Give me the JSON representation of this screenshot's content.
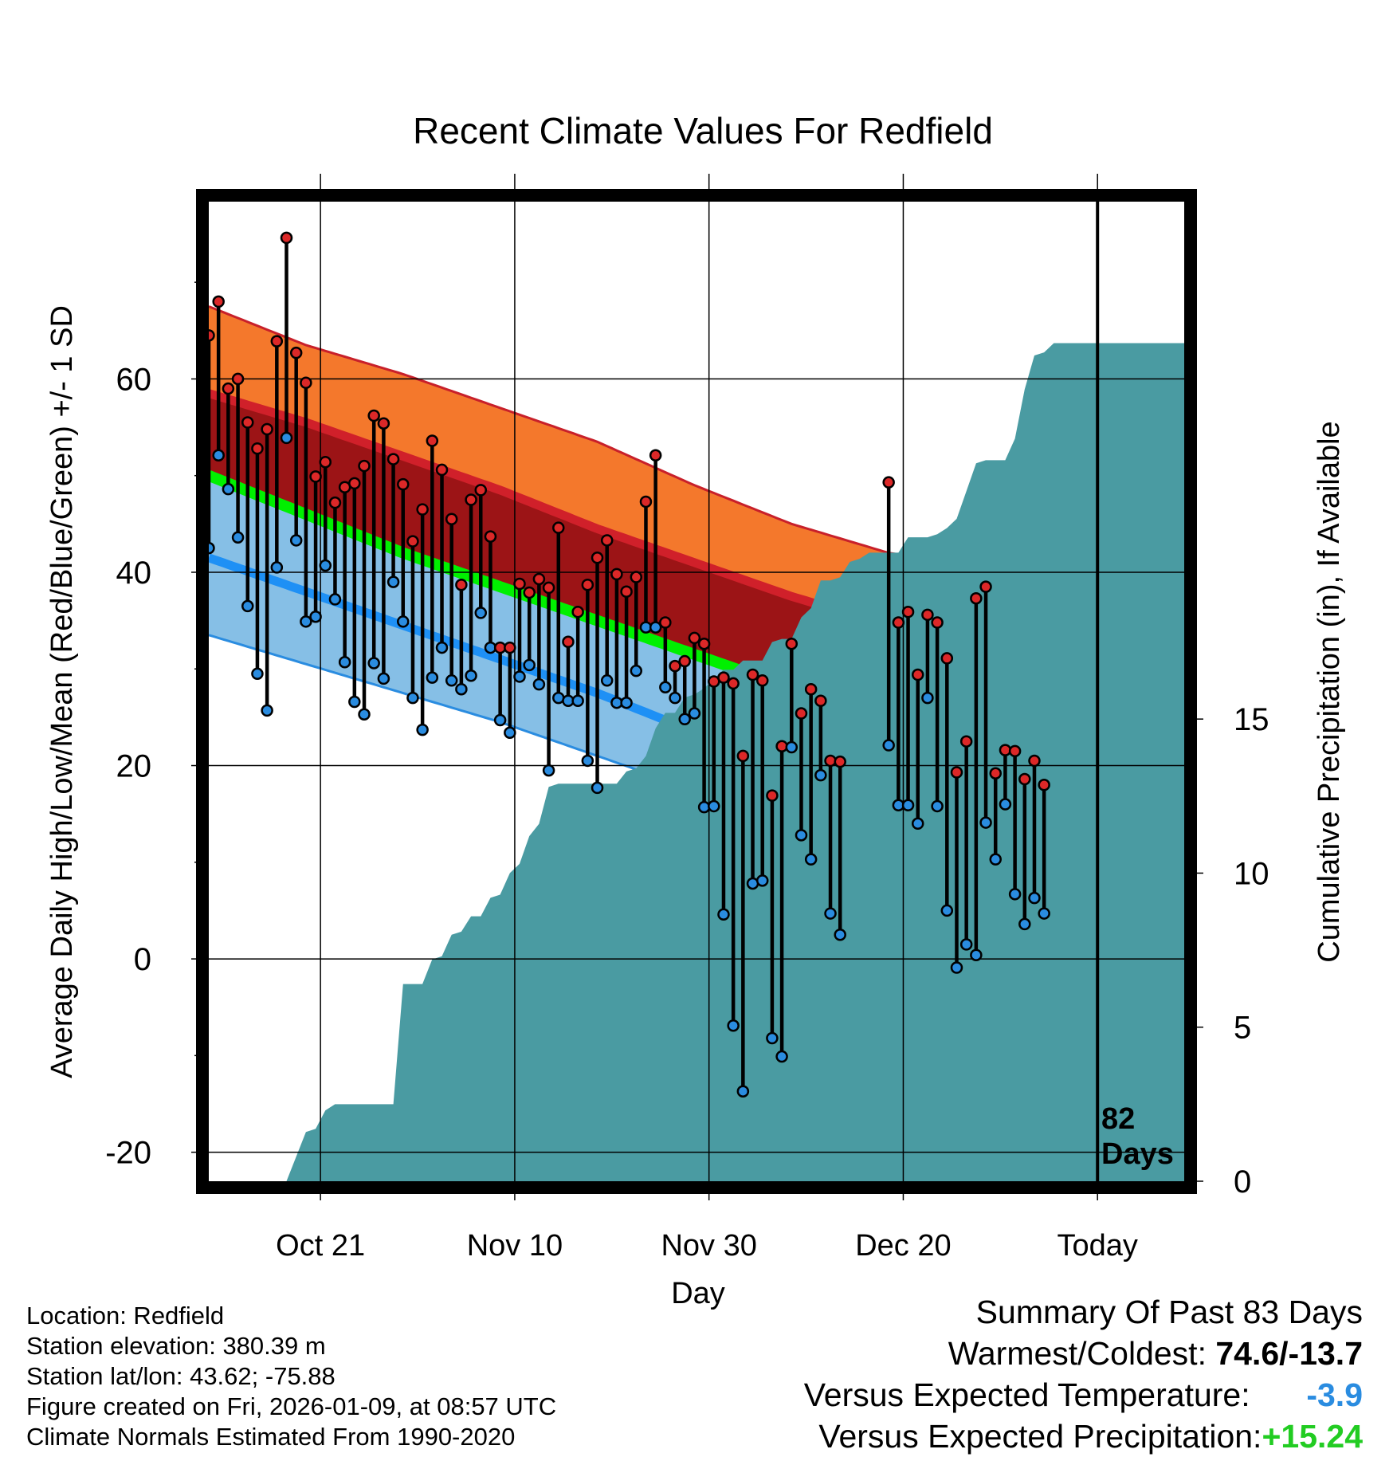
{
  "chart_data": {
    "type": "line",
    "title": "Recent Climate Values For Redfield",
    "xlabel": "Day",
    "ylabel": "Average Daily High/Low/Mean (Red/Blue/Green) +/- 1 SD",
    "y2label": "Cumulative Precipitation (in), If Available",
    "x_day_range": [
      0,
      101
    ],
    "ylim": [
      -23,
      79
    ],
    "y2lim": [
      0,
      32
    ],
    "x_ticks": [
      {
        "day": 11.5,
        "label": "Oct 21"
      },
      {
        "day": 31.5,
        "label": "Nov 10"
      },
      {
        "day": 51.5,
        "label": "Nov 30"
      },
      {
        "day": 71.5,
        "label": "Dec 20"
      },
      {
        "day": 91.5,
        "label": "Today"
      }
    ],
    "y_ticks": [
      -20,
      0,
      20,
      40,
      60
    ],
    "y2_ticks": [
      0,
      5,
      10,
      15
    ],
    "today_day": 91.5,
    "today_label_line1": "82",
    "today_label_line2": "Days",
    "normals": {
      "days": [
        0,
        10,
        20,
        30,
        40,
        50,
        60,
        70,
        80,
        90,
        101
      ],
      "high_mean": [
        58.5,
        55.5,
        52,
        48.5,
        44.5,
        41,
        37.5,
        34.5,
        32,
        30.5,
        29.5
      ],
      "high_plus_sd": [
        67.5,
        63.5,
        60.5,
        57,
        53.5,
        49,
        45,
        42,
        40.5,
        40,
        39.5
      ],
      "avg_mean": [
        50,
        46,
        42,
        38.5,
        35,
        31.5,
        28,
        25,
        22.5,
        20.5,
        19.5
      ],
      "low_mean": [
        41.5,
        38,
        34.5,
        31,
        27.5,
        23.5,
        20.5,
        17.5,
        15,
        13,
        12
      ],
      "low_minus_sd": [
        33.5,
        30.5,
        27.5,
        24.5,
        21,
        17.5,
        14,
        11.5,
        9,
        7.5,
        6.5
      ]
    },
    "observed_day_start": 0,
    "observed_highs": [
      64.5,
      68,
      59,
      60,
      55.5,
      52.8,
      54.8,
      63.9,
      74.6,
      62.7,
      59.6,
      49.9,
      51.4,
      47.2,
      48.8,
      49.2,
      51,
      56.2,
      55.4,
      51.7,
      49.1,
      43.2,
      46.5,
      53.6,
      50.6,
      45.5,
      38.7,
      47.5,
      48.5,
      43.7,
      32.2,
      32.2,
      38.8,
      37.9,
      39.3,
      38.4,
      44.6,
      32.8,
      35.9,
      38.7,
      41.5,
      43.3,
      39.8,
      38,
      39.5,
      47.3,
      52.1,
      34.8,
      30.3,
      30.8,
      33.2,
      32.6,
      28.7,
      29.1,
      28.5,
      21,
      29.4,
      28.8,
      16.9,
      22,
      32.6,
      25.4,
      27.9,
      26.7,
      20.5,
      20.4,
      null,
      null,
      null,
      null,
      49.3,
      34.8,
      35.9,
      29.4,
      35.6,
      34.8,
      31.1,
      19.3,
      22.5,
      37.3,
      38.5,
      19.2,
      21.6,
      21.5,
      18.6,
      20.5,
      18
    ],
    "observed_lows": [
      42.5,
      52.1,
      48.6,
      43.6,
      36.5,
      29.5,
      25.7,
      40.5,
      53.9,
      43.3,
      34.9,
      35.4,
      40.7,
      37.2,
      30.7,
      26.6,
      25.3,
      30.6,
      29,
      39,
      34.9,
      27,
      23.7,
      29.1,
      32.2,
      28.8,
      27.9,
      29.3,
      35.8,
      32.2,
      24.7,
      23.4,
      29.2,
      30.4,
      28.4,
      19.5,
      27,
      26.7,
      26.7,
      20.5,
      17.7,
      28.8,
      26.5,
      26.5,
      29.8,
      34.3,
      34.3,
      28.1,
      27,
      24.8,
      25.4,
      15.7,
      15.8,
      4.6,
      -6.9,
      -13.7,
      7.8,
      8.1,
      -8.2,
      -10.1,
      21.9,
      12.8,
      10.3,
      19,
      4.7,
      2.5,
      null,
      null,
      null,
      null,
      22.1,
      15.9,
      15.9,
      14,
      27,
      15.8,
      5,
      -0.9,
      1.5,
      0.4,
      14.1,
      10.3,
      16,
      6.7,
      3.6,
      6.3,
      4.7
    ],
    "precip_cumulative": {
      "days": [
        8,
        10,
        11,
        12,
        13,
        14,
        15,
        16,
        17,
        18,
        19,
        20,
        21,
        22,
        23,
        24,
        25,
        26,
        27,
        28,
        29,
        30,
        31,
        32,
        33,
        34,
        35,
        36,
        37,
        38,
        39,
        40,
        41,
        42,
        43,
        44,
        45,
        46,
        47,
        48,
        49,
        50,
        51,
        52,
        53,
        54,
        55,
        56,
        57,
        58,
        59,
        60,
        61,
        62,
        63,
        64,
        65,
        66,
        67,
        68,
        69,
        70,
        71,
        72,
        73,
        74,
        75,
        76,
        77,
        78,
        79,
        80,
        81,
        82,
        83,
        84,
        85,
        86,
        87,
        88,
        101
      ],
      "values": [
        0,
        1.6,
        1.7,
        2.3,
        2.5,
        2.5,
        2.5,
        2.5,
        2.5,
        2.5,
        2.5,
        6.4,
        6.4,
        6.4,
        7.2,
        7.3,
        8,
        8.1,
        8.6,
        8.6,
        9.2,
        9.3,
        10,
        10.3,
        11.2,
        11.6,
        12.8,
        12.9,
        12.9,
        12.9,
        12.9,
        12.9,
        12.9,
        12.9,
        13.3,
        13.4,
        13.8,
        14.7,
        15.2,
        15.2,
        15.7,
        15.8,
        16,
        16.3,
        16.6,
        16.6,
        16.9,
        16.9,
        16.9,
        17.5,
        17.6,
        17.6,
        18.3,
        18.6,
        19.5,
        19.5,
        19.6,
        20.1,
        20.2,
        20.4,
        20.4,
        20.4,
        20.4,
        20.9,
        20.9,
        20.9,
        21,
        21.2,
        21.5,
        22.4,
        23.3,
        23.4,
        23.4,
        23.4,
        24.1,
        25.7,
        26.8,
        26.9,
        27.2,
        27.2,
        27.2
      ]
    },
    "colors": {
      "high_band": "#f4782c",
      "high_mean_line": "#d0202a",
      "high_edge": "#c8202a",
      "mean_band": "#9c1416",
      "avg_line": "#00f000",
      "low_band": "#86bfe6",
      "low_mean_line": "#1e90f5",
      "precip": "#4a9ba2",
      "high_dot": "#dc2828",
      "low_dot": "#2a8ce0"
    }
  },
  "footer": {
    "location": "Location: Redfield",
    "elevation": "Station elevation: 380.39 m",
    "latlon": "Station lat/lon: 43.62; -75.88",
    "created": "Figure created on Fri, 2026-01-09, at 08:57 UTC",
    "normals": "Climate Normals Estimated From 1990-2020"
  },
  "summary": {
    "heading": "Summary Of Past 83 Days",
    "warm_cold_label": "Warmest/Coldest: ",
    "warm_cold_value": "74.6/-13.7",
    "temp_label": "Versus Expected Temperature: ",
    "temp_value": "-3.9",
    "temp_color": "#2a8ce0",
    "precip_label": "Versus Expected Precipitation:",
    "precip_value": "+15.24",
    "precip_color": "#22cc22"
  }
}
